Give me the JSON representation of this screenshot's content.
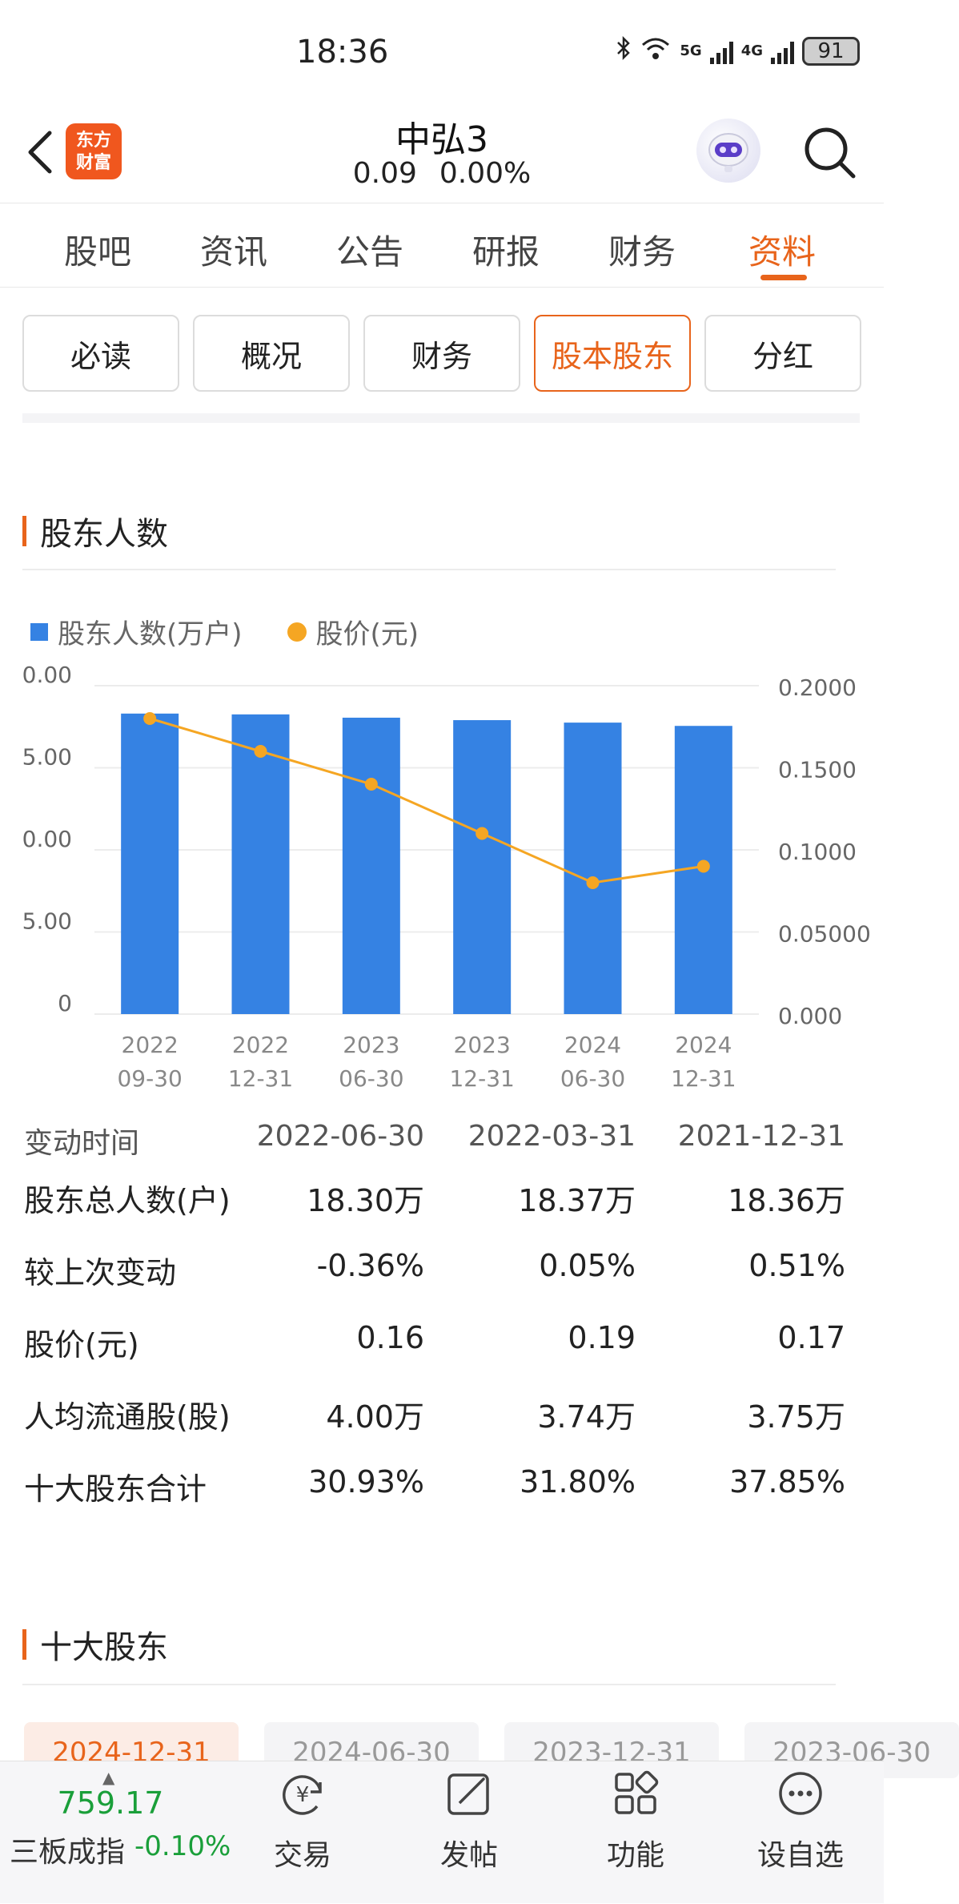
{
  "status_bar": {
    "time": "18:36",
    "network_5g": "5G",
    "network_4g": "4G",
    "battery": "91"
  },
  "header": {
    "logo_line1": "东方",
    "logo_line2": "财富",
    "stock_name": "中弘3",
    "price": "0.09",
    "change_pct": "0.00%"
  },
  "main_tabs": [
    {
      "label": "股吧"
    },
    {
      "label": "资讯"
    },
    {
      "label": "公告"
    },
    {
      "label": "研报"
    },
    {
      "label": "财务"
    },
    {
      "label": "资料",
      "active": true
    }
  ],
  "sub_tabs": [
    {
      "label": "必读"
    },
    {
      "label": "概况"
    },
    {
      "label": "财务"
    },
    {
      "label": "股本股东",
      "active": true
    },
    {
      "label": "分红"
    }
  ],
  "shareholders_section": {
    "title": "股东人数",
    "legend_bars": "股东人数(万户)",
    "legend_line": "股价(元)"
  },
  "chart_data": {
    "type": "bar",
    "categories": [
      [
        "2022",
        "09-30"
      ],
      [
        "2022",
        "12-31"
      ],
      [
        "2023",
        "06-30"
      ],
      [
        "2023",
        "12-31"
      ],
      [
        "2024",
        "06-30"
      ],
      [
        "2024",
        "12-31"
      ]
    ],
    "series": [
      {
        "name": "股东人数(万户)",
        "type": "bar",
        "axis": "left",
        "values": [
          18.3,
          18.25,
          18.05,
          17.9,
          17.75,
          17.55
        ],
        "color": "#3582e3"
      },
      {
        "name": "股价(元)",
        "type": "line",
        "axis": "right",
        "values": [
          0.18,
          0.16,
          0.14,
          0.11,
          0.08,
          0.09
        ],
        "color": "#f5a623"
      }
    ],
    "left_axis": {
      "ticks": [
        "0.00",
        "5.00",
        "0.00",
        "5.00",
        "0"
      ],
      "ylim": [
        0,
        20
      ]
    },
    "right_axis": {
      "ticks": [
        "0.2000",
        "0.1500",
        "0.1000",
        "0.05000",
        "0.000"
      ],
      "ylim": [
        0,
        0.2
      ]
    },
    "grid": true,
    "legend": "top-left"
  },
  "shareholder_table": {
    "header": {
      "label": "变动时间",
      "cols": [
        "2022-06-30",
        "2022-03-31",
        "2021-12-31"
      ]
    },
    "rows": [
      {
        "label": "股东总人数(户)",
        "cols": [
          "18.30万",
          "18.37万",
          "18.36万"
        ]
      },
      {
        "label": "较上次变动",
        "cols": [
          "-0.36%",
          "0.05%",
          "0.51%"
        ]
      },
      {
        "label": "股价(元)",
        "cols": [
          "0.16",
          "0.19",
          "0.17"
        ]
      },
      {
        "label": "人均流通股(股)",
        "cols": [
          "4.00万",
          "3.74万",
          "3.75万"
        ]
      },
      {
        "label": "十大股东合计",
        "cols": [
          "30.93%",
          "31.80%",
          "37.85%"
        ]
      }
    ]
  },
  "top10_section": {
    "title": "十大股东",
    "date_chips": [
      "2024-12-31",
      "2024-06-30",
      "2023-12-31",
      "2023-06-30"
    ]
  },
  "bottom_nav": {
    "index_value": "759.17",
    "index_name": "三板成指",
    "index_change": "-0.10%",
    "items": [
      {
        "label": "交易"
      },
      {
        "label": "发帖"
      },
      {
        "label": "功能"
      },
      {
        "label": "设自选"
      }
    ]
  }
}
